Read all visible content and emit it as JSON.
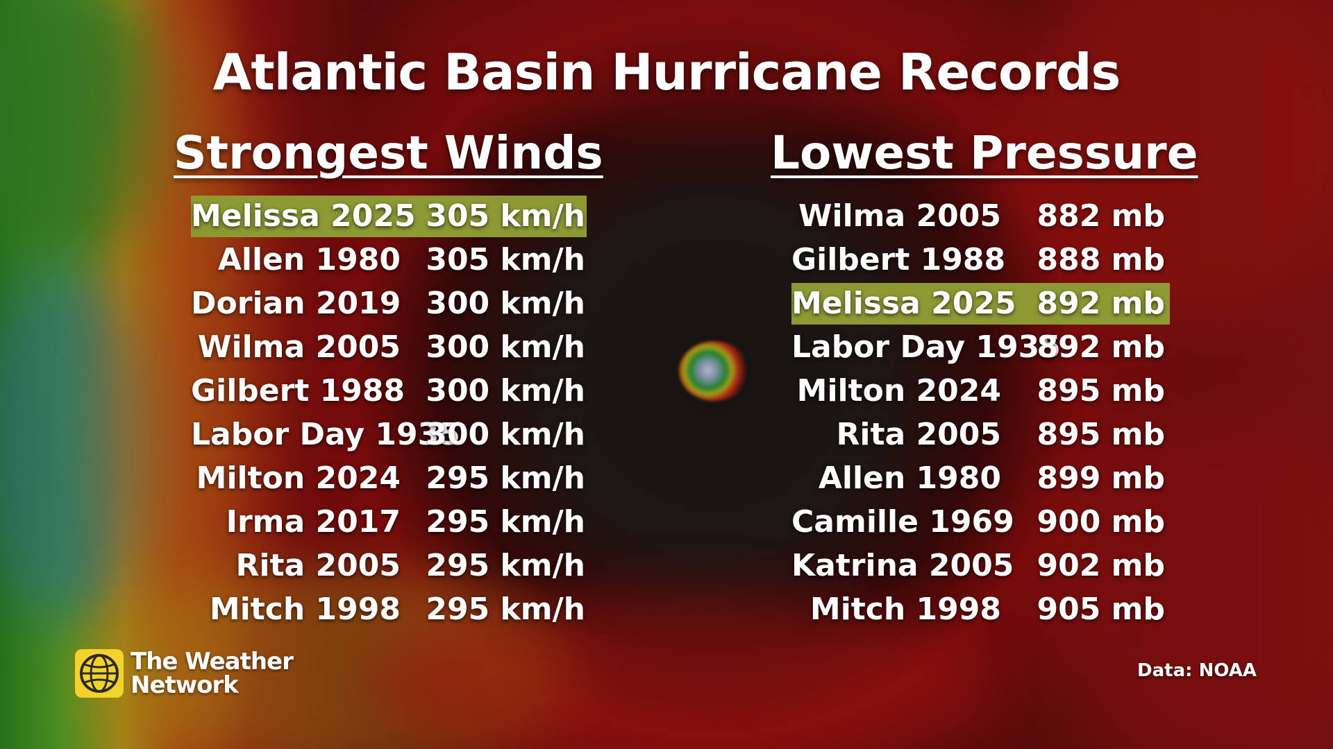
{
  "title": "Atlantic Basin Hurricane Records",
  "strongest_winds": {
    "heading": "Strongest Winds",
    "rows": [
      {
        "name": "Melissa 2025",
        "value": "305 km/h",
        "highlight": true
      },
      {
        "name": "Allen 1980",
        "value": "305 km/h",
        "highlight": false
      },
      {
        "name": "Dorian 2019",
        "value": "300 km/h",
        "highlight": false
      },
      {
        "name": "Wilma 2005",
        "value": "300 km/h",
        "highlight": false
      },
      {
        "name": "Gilbert 1988",
        "value": "300 km/h",
        "highlight": false
      },
      {
        "name": "Labor Day 1935",
        "value": "300 km/h",
        "highlight": false
      },
      {
        "name": "Milton 2024",
        "value": "295 km/h",
        "highlight": false
      },
      {
        "name": "Irma 2017",
        "value": "295 km/h",
        "highlight": false
      },
      {
        "name": "Rita 2005",
        "value": "295 km/h",
        "highlight": false
      },
      {
        "name": "Mitch 1998",
        "value": "295 km/h",
        "highlight": false
      }
    ]
  },
  "lowest_pressure": {
    "heading": "Lowest Pressure",
    "rows": [
      {
        "name": "Wilma 2005",
        "value": "882 mb",
        "highlight": false
      },
      {
        "name": "Gilbert 1988",
        "value": "888 mb",
        "highlight": false
      },
      {
        "name": "Melissa 2025",
        "value": "892 mb",
        "highlight": true
      },
      {
        "name": "Labor Day 1935",
        "value": "892 mb",
        "highlight": false
      },
      {
        "name": "Milton 2024",
        "value": "895 mb",
        "highlight": false
      },
      {
        "name": "Rita 2005",
        "value": "895 mb",
        "highlight": false
      },
      {
        "name": "Allen 1980",
        "value": "899 mb",
        "highlight": false
      },
      {
        "name": "Camille 1969",
        "value": "900 mb",
        "highlight": false
      },
      {
        "name": "Katrina 2005",
        "value": "902 mb",
        "highlight": false
      },
      {
        "name": "Mitch 1998",
        "value": "905 mb",
        "highlight": false
      }
    ]
  },
  "logo": {
    "line1": "The Weather",
    "line2": "Network",
    "icon": "globe-icon"
  },
  "source": "Data: NOAA",
  "colors": {
    "highlight": "#8d9a33",
    "text": "#ffffff",
    "logo_yellow": "#f3d22a"
  }
}
